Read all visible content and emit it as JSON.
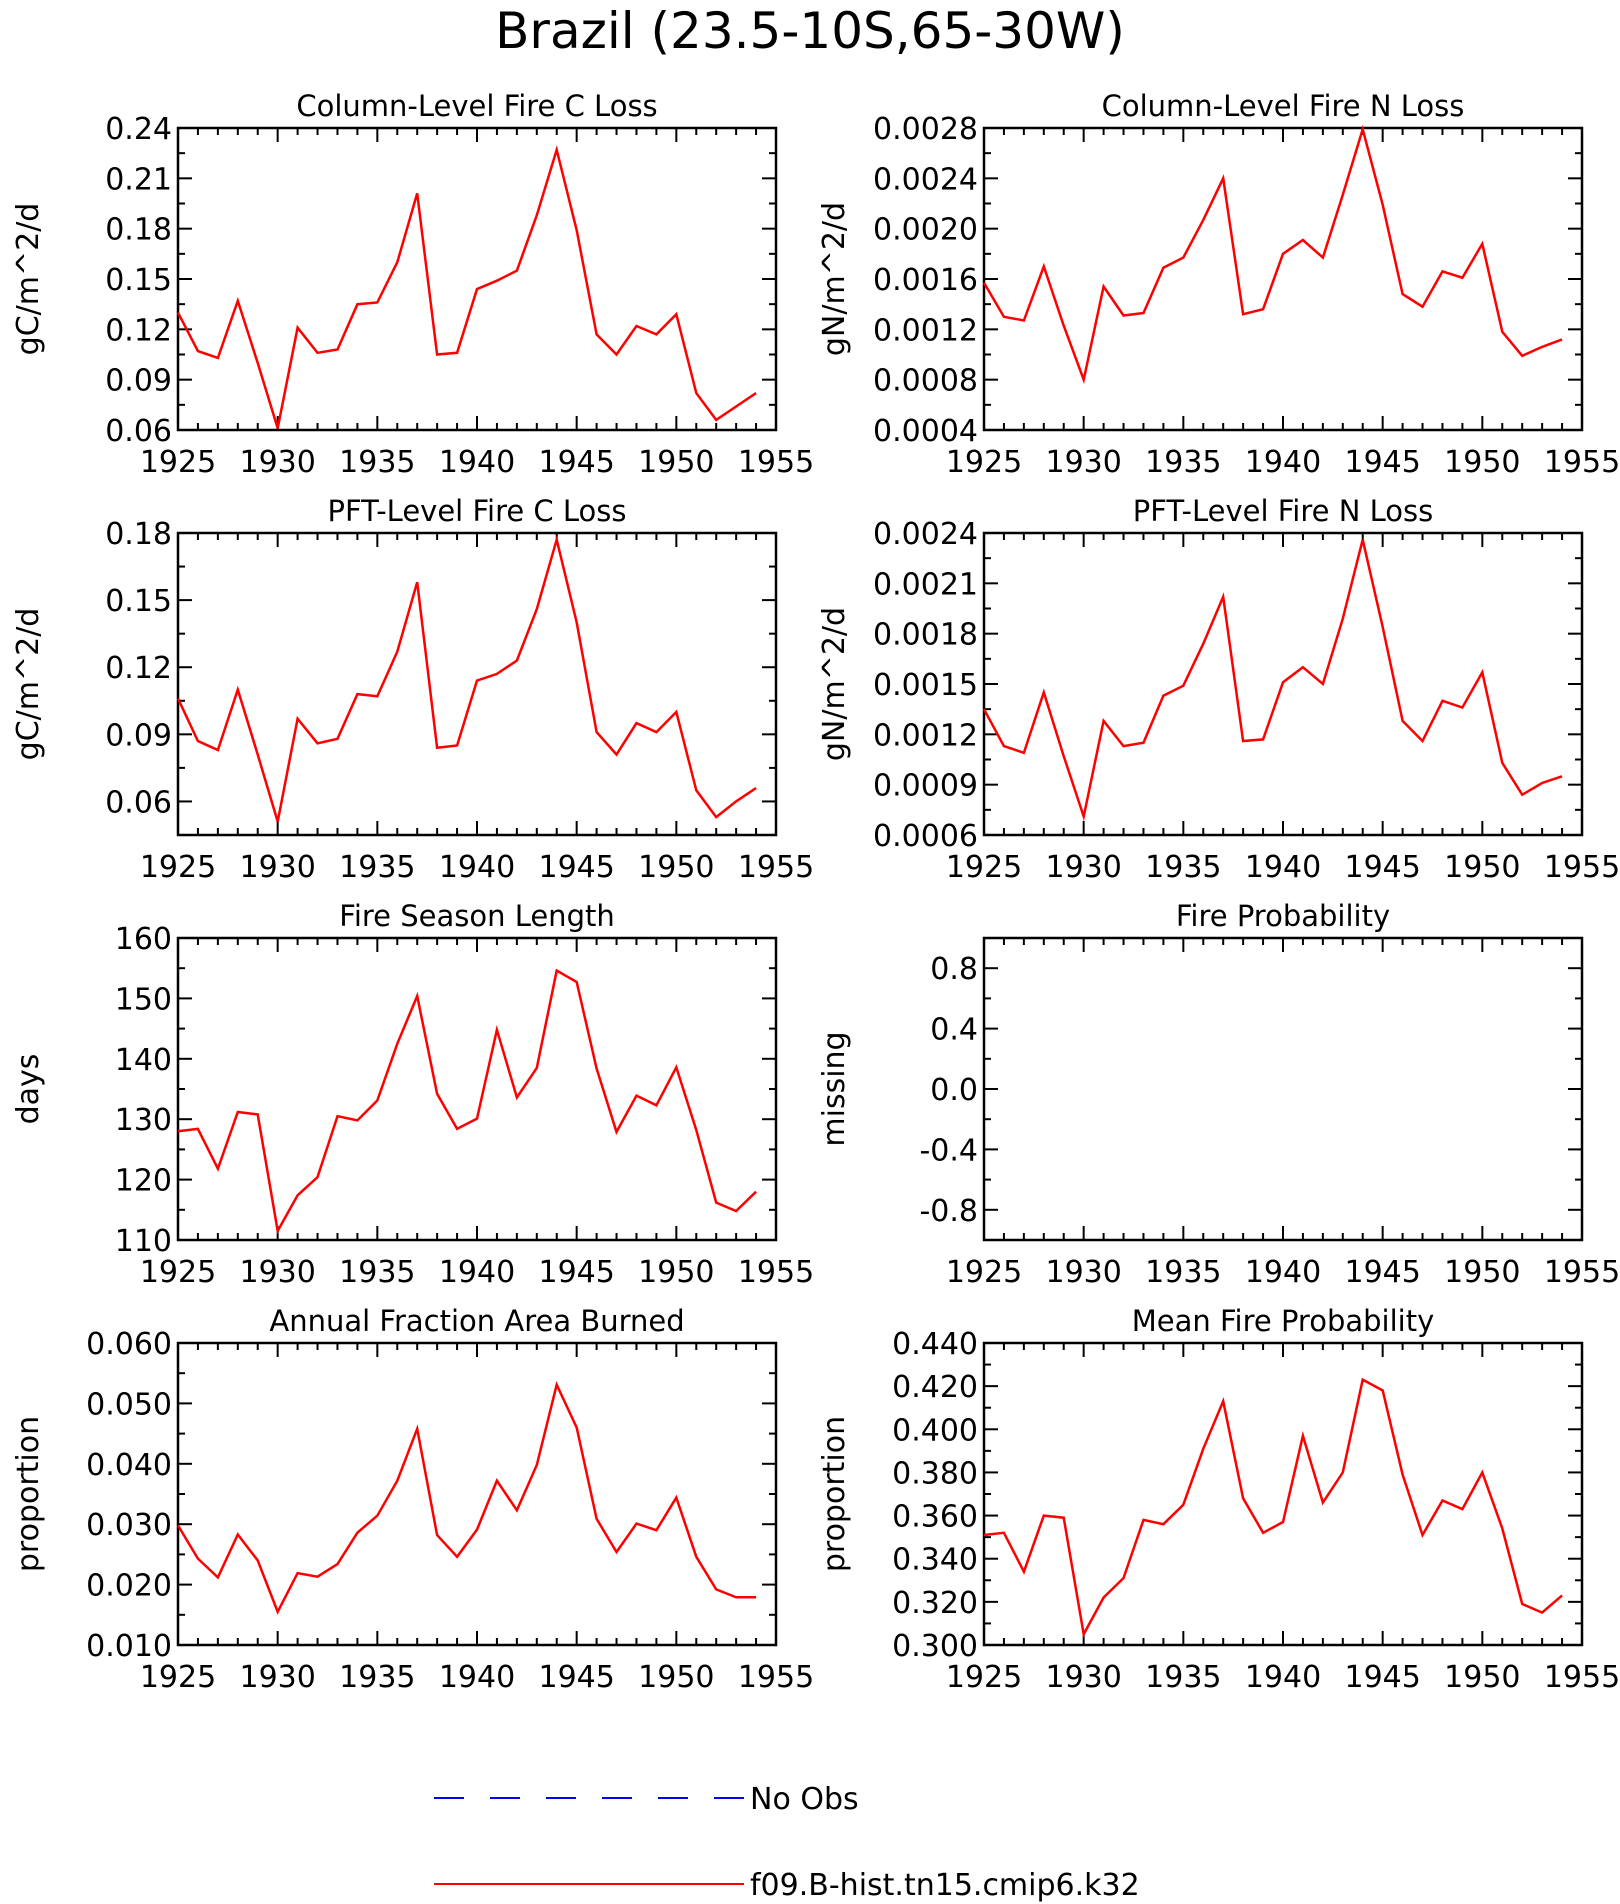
{
  "figure": {
    "title": "Brazil (23.5-10S,65-30W)",
    "series_color": "#ff0000",
    "obs_color": "#0000ff",
    "legend": {
      "entries": [
        {
          "label": "No Obs",
          "style": "dashed",
          "color": "#0000ff"
        },
        {
          "label": "f09.B-hist.tn15.cmip6.k32",
          "style": "solid",
          "color": "#ff0000"
        }
      ]
    }
  },
  "chart_data": [
    {
      "type": "line",
      "title": "Column-Level Fire C Loss",
      "ylabel": "gC/m^2/d",
      "xlim": [
        1925,
        1955
      ],
      "ylim": [
        0.06,
        0.24
      ],
      "x_ticks": [
        "1925",
        "1930",
        "1935",
        "1940",
        "1945",
        "1950",
        "1955"
      ],
      "y_ticks": [
        "0.06",
        "0.09",
        "0.12",
        "0.15",
        "0.18",
        "0.21",
        "0.24"
      ],
      "x": [
        1925,
        1926,
        1927,
        1928,
        1929,
        1930,
        1931,
        1932,
        1933,
        1934,
        1935,
        1936,
        1937,
        1938,
        1939,
        1940,
        1941,
        1942,
        1943,
        1944,
        1945,
        1946,
        1947,
        1948,
        1949,
        1950,
        1951,
        1952,
        1953,
        1954
      ],
      "series": [
        {
          "values": [
            0.13,
            0.107,
            0.103,
            0.137,
            0.1,
            0.061,
            0.121,
            0.106,
            0.108,
            0.135,
            0.136,
            0.16,
            0.201,
            0.105,
            0.106,
            0.144,
            0.149,
            0.155,
            0.188,
            0.227,
            0.179,
            0.117,
            0.105,
            0.122,
            0.117,
            0.129,
            0.082,
            0.066,
            0.074,
            0.082
          ]
        }
      ]
    },
    {
      "type": "line",
      "title": "Column-Level Fire N Loss",
      "ylabel": "gN/m^2/d",
      "xlim": [
        1925,
        1955
      ],
      "ylim": [
        0.0004,
        0.0028
      ],
      "x_ticks": [
        "1925",
        "1930",
        "1935",
        "1940",
        "1945",
        "1950",
        "1955"
      ],
      "y_ticks": [
        "0.0004",
        "0.0008",
        "0.0012",
        "0.0016",
        "0.0020",
        "0.0024",
        "0.0028"
      ],
      "x": [
        1925,
        1926,
        1927,
        1928,
        1929,
        1930,
        1931,
        1932,
        1933,
        1934,
        1935,
        1936,
        1937,
        1938,
        1939,
        1940,
        1941,
        1942,
        1943,
        1944,
        1945,
        1946,
        1947,
        1948,
        1949,
        1950,
        1951,
        1952,
        1953,
        1954
      ],
      "series": [
        {
          "values": [
            0.00157,
            0.0013,
            0.00127,
            0.0017,
            0.00123,
            0.0008,
            0.00154,
            0.00131,
            0.00133,
            0.00169,
            0.00177,
            0.00207,
            0.0024,
            0.00132,
            0.00136,
            0.0018,
            0.00191,
            0.00177,
            0.00227,
            0.00279,
            0.00219,
            0.00148,
            0.00138,
            0.00166,
            0.00161,
            0.00188,
            0.00118,
            0.00099,
            0.00106,
            0.00112
          ]
        }
      ]
    },
    {
      "type": "line",
      "title": "PFT-Level Fire C Loss",
      "ylabel": "gC/m^2/d",
      "xlim": [
        1925,
        1955
      ],
      "ylim": [
        0.045,
        0.18
      ],
      "x_ticks": [
        "1925",
        "1930",
        "1935",
        "1940",
        "1945",
        "1950",
        "1955"
      ],
      "y_ticks": [
        "0.06",
        "0.09",
        "0.12",
        "0.15",
        "0.18"
      ],
      "x": [
        1925,
        1926,
        1927,
        1928,
        1929,
        1930,
        1931,
        1932,
        1933,
        1934,
        1935,
        1936,
        1937,
        1938,
        1939,
        1940,
        1941,
        1942,
        1943,
        1944,
        1945,
        1946,
        1947,
        1948,
        1949,
        1950,
        1951,
        1952,
        1953,
        1954
      ],
      "series": [
        {
          "values": [
            0.106,
            0.087,
            0.083,
            0.11,
            0.081,
            0.051,
            0.097,
            0.086,
            0.088,
            0.108,
            0.107,
            0.127,
            0.158,
            0.084,
            0.085,
            0.114,
            0.117,
            0.123,
            0.146,
            0.177,
            0.14,
            0.091,
            0.081,
            0.095,
            0.091,
            0.1,
            0.065,
            0.053,
            0.06,
            0.066
          ]
        }
      ]
    },
    {
      "type": "line",
      "title": "PFT-Level Fire N Loss",
      "ylabel": "gN/m^2/d",
      "xlim": [
        1925,
        1955
      ],
      "ylim": [
        0.0006,
        0.0024
      ],
      "x_ticks": [
        "1925",
        "1930",
        "1935",
        "1940",
        "1945",
        "1950",
        "1955"
      ],
      "y_ticks": [
        "0.0006",
        "0.0009",
        "0.0012",
        "0.0015",
        "0.0018",
        "0.0021",
        "0.0024"
      ],
      "x": [
        1925,
        1926,
        1927,
        1928,
        1929,
        1930,
        1931,
        1932,
        1933,
        1934,
        1935,
        1936,
        1937,
        1938,
        1939,
        1940,
        1941,
        1942,
        1943,
        1944,
        1945,
        1946,
        1947,
        1948,
        1949,
        1950,
        1951,
        1952,
        1953,
        1954
      ],
      "series": [
        {
          "values": [
            0.00135,
            0.00113,
            0.00109,
            0.00145,
            0.00107,
            0.00071,
            0.00128,
            0.00113,
            0.00115,
            0.00143,
            0.00149,
            0.00174,
            0.00202,
            0.00116,
            0.00117,
            0.00151,
            0.0016,
            0.0015,
            0.00189,
            0.00236,
            0.00184,
            0.00128,
            0.00116,
            0.0014,
            0.00136,
            0.00157,
            0.00103,
            0.00084,
            0.00091,
            0.00095
          ]
        }
      ]
    },
    {
      "type": "line",
      "title": "Fire Season Length",
      "ylabel": "days",
      "xlim": [
        1925,
        1955
      ],
      "ylim": [
        110,
        160
      ],
      "x_ticks": [
        "1925",
        "1930",
        "1935",
        "1940",
        "1945",
        "1950",
        "1955"
      ],
      "y_ticks": [
        "110",
        "120",
        "130",
        "140",
        "150",
        "160"
      ],
      "x": [
        1925,
        1926,
        1927,
        1928,
        1929,
        1930,
        1931,
        1932,
        1933,
        1934,
        1935,
        1936,
        1937,
        1938,
        1939,
        1940,
        1941,
        1942,
        1943,
        1944,
        1945,
        1946,
        1947,
        1948,
        1949,
        1950,
        1951,
        1952,
        1953,
        1954
      ],
      "series": [
        {
          "values": [
            128.0,
            128.4,
            121.8,
            131.2,
            130.8,
            111.5,
            117.4,
            120.4,
            130.5,
            129.8,
            133.1,
            142.5,
            150.4,
            134.2,
            128.4,
            130.1,
            144.8,
            133.6,
            138.5,
            154.6,
            152.7,
            138.4,
            127.9,
            133.9,
            132.3,
            138.6,
            128.2,
            116.2,
            114.8,
            118.0
          ]
        }
      ]
    },
    {
      "type": "line",
      "title": "Fire Probability",
      "ylabel": "missing",
      "xlim": [
        1925,
        1955
      ],
      "ylim": [
        -1.0,
        1.0
      ],
      "x_ticks": [
        "1925",
        "1930",
        "1935",
        "1940",
        "1945",
        "1950",
        "1955"
      ],
      "y_ticks": [
        "-0.8",
        "-0.4",
        "0.0",
        "0.4",
        "0.8"
      ],
      "x": [],
      "series": []
    },
    {
      "type": "line",
      "title": "Annual Fraction Area Burned",
      "ylabel": "proportion",
      "xlim": [
        1925,
        1955
      ],
      "ylim": [
        0.01,
        0.06
      ],
      "x_ticks": [
        "1925",
        "1930",
        "1935",
        "1940",
        "1945",
        "1950",
        "1955"
      ],
      "y_ticks": [
        "0.010",
        "0.020",
        "0.030",
        "0.040",
        "0.050",
        "0.060"
      ],
      "x": [
        1925,
        1926,
        1927,
        1928,
        1929,
        1930,
        1931,
        1932,
        1933,
        1934,
        1935,
        1936,
        1937,
        1938,
        1939,
        1940,
        1941,
        1942,
        1943,
        1944,
        1945,
        1946,
        1947,
        1948,
        1949,
        1950,
        1951,
        1952,
        1953,
        1954
      ],
      "series": [
        {
          "values": [
            0.0298,
            0.0243,
            0.0212,
            0.0283,
            0.024,
            0.0155,
            0.0219,
            0.0213,
            0.0234,
            0.0286,
            0.0314,
            0.0372,
            0.0458,
            0.0282,
            0.0246,
            0.0291,
            0.0372,
            0.0323,
            0.0398,
            0.0531,
            0.046,
            0.0309,
            0.0254,
            0.0301,
            0.029,
            0.0344,
            0.0246,
            0.0192,
            0.0179,
            0.0179
          ]
        }
      ]
    },
    {
      "type": "line",
      "title": "Mean Fire Probability",
      "ylabel": "proportion",
      "xlim": [
        1925,
        1955
      ],
      "ylim": [
        0.3,
        0.44
      ],
      "x_ticks": [
        "1925",
        "1930",
        "1935",
        "1940",
        "1945",
        "1950",
        "1955"
      ],
      "y_ticks": [
        "0.300",
        "0.320",
        "0.340",
        "0.360",
        "0.380",
        "0.400",
        "0.420",
        "0.440"
      ],
      "x": [
        1925,
        1926,
        1927,
        1928,
        1929,
        1930,
        1931,
        1932,
        1933,
        1934,
        1935,
        1936,
        1937,
        1938,
        1939,
        1940,
        1941,
        1942,
        1943,
        1944,
        1945,
        1946,
        1947,
        1948,
        1949,
        1950,
        1951,
        1952,
        1953,
        1954
      ],
      "series": [
        {
          "values": [
            0.351,
            0.352,
            0.334,
            0.36,
            0.359,
            0.305,
            0.322,
            0.331,
            0.358,
            0.356,
            0.365,
            0.391,
            0.413,
            0.368,
            0.352,
            0.357,
            0.397,
            0.366,
            0.38,
            0.423,
            0.418,
            0.379,
            0.351,
            0.367,
            0.363,
            0.38,
            0.354,
            0.319,
            0.315,
            0.323
          ]
        }
      ]
    }
  ]
}
